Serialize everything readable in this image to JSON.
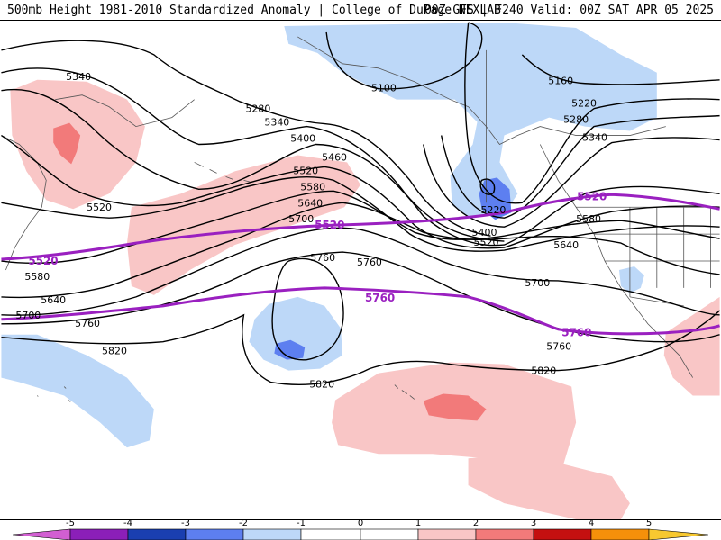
{
  "header": {
    "left_title": "500mb Height 1981-2010 Standardized Anomaly | College of DuPage NEXLAB",
    "right_title": "00Z GFS | F240 Valid: 00Z SAT APR 05 2025"
  },
  "colors": {
    "neg5": "#d25fd2",
    "neg4": "#8b1fb8",
    "neg3": "#1a3fb0",
    "neg2": "#5d7ff0",
    "neg1": "#bdd8f8",
    "zero": "#ffffff",
    "pos1": "#f9c6c6",
    "pos2": "#f27a7a",
    "pos3": "#c41010",
    "pos4": "#f5900a",
    "pos5": "#f7c830",
    "contour": "#000000",
    "highlight_contour": "#9a20c0"
  },
  "contour_labels": {
    "c5100": "5100",
    "c5160": "5160",
    "c5220a": "5220",
    "c5220b": "5220",
    "c5220c": "5220",
    "c5280a": "5280",
    "c5280b": "5280",
    "c5340a": "5340",
    "c5340b": "5340",
    "c5340c": "5340",
    "c5400a": "5400",
    "c5400b": "5400",
    "c5460": "5460",
    "c5520a": "5520",
    "c5520b": "5520",
    "c5520c": "5520",
    "c5580a": "5580",
    "c5580b": "5580",
    "c5580c": "5580",
    "c5640a": "5640",
    "c5640b": "5640",
    "c5640c": "5640",
    "c5700a": "5700",
    "c5700b": "5700",
    "c5700c": "5700",
    "c5760a": "5760",
    "c5760b": "5760",
    "c5760c": "5760",
    "c5760d": "5760",
    "c5820a": "5820",
    "c5820b": "5820",
    "c5820c": "5820",
    "p5520a": "5520",
    "p5520b": "5520",
    "p5520c": "5520",
    "p5760a": "5760",
    "p5760b": "5760"
  },
  "colorbar": {
    "ticks": [
      "-5",
      "-4",
      "-3",
      "-2",
      "-1",
      "0",
      "1",
      "2",
      "3",
      "4",
      "5"
    ]
  }
}
